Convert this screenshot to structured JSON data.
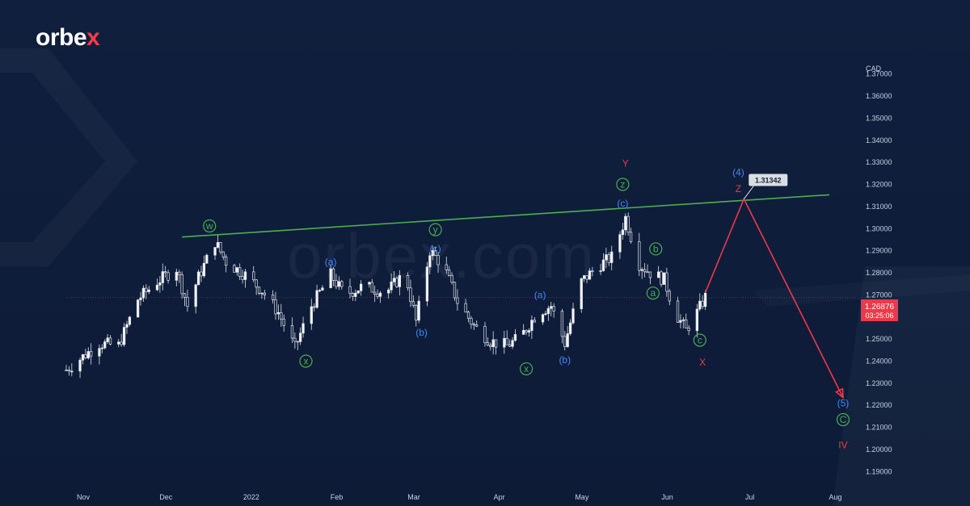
{
  "brand": {
    "logo_text": "orbe",
    "logo_accent": "x",
    "watermark": "orbex.com"
  },
  "colors": {
    "background": "#0f1e3c",
    "bull": "#e6e9ef",
    "bear": "#e6e9ef",
    "trendline": "#4caf50",
    "projection": "#f0384a",
    "wave_green": "#4caf50",
    "wave_blue": "#3d8bff",
    "wave_red": "#f0384a",
    "price_badge": "#f0384a",
    "target_badge": "#d9dde4"
  },
  "chart_data": {
    "type": "candlestick",
    "symbol_unit": "CAD",
    "x_labels": [
      "Nov",
      "Dec",
      "2022",
      "Feb",
      "Mar",
      "Apr",
      "May",
      "Jun",
      "Jul",
      "Aug"
    ],
    "y_ticks": [
      1.19,
      1.2,
      1.21,
      1.22,
      1.23,
      1.24,
      1.25,
      1.26,
      1.27,
      1.28,
      1.29,
      1.3,
      1.31,
      1.32,
      1.33,
      1.34,
      1.35,
      1.36,
      1.37
    ],
    "ylim": [
      1.185,
      1.375
    ],
    "xlim": [
      "2021-10-27",
      "2022-08-10"
    ],
    "grid": false,
    "current_price": {
      "value": 1.26876,
      "label": "1.26876",
      "countdown": "03:25:06"
    },
    "price_path": [
      [
        "2021-10-27",
        1.236
      ],
      [
        "2021-11-02",
        1.242
      ],
      [
        "2021-11-08",
        1.248
      ],
      [
        "2021-11-15",
        1.247
      ],
      [
        "2021-11-22",
        1.268
      ],
      [
        "2021-11-29",
        1.276
      ],
      [
        "2021-12-06",
        1.282
      ],
      [
        "2021-12-10",
        1.265
      ],
      [
        "2021-12-14",
        1.278
      ],
      [
        "2021-12-20",
        1.294
      ],
      [
        "2021-12-24",
        1.285
      ],
      [
        "2021-12-31",
        1.279
      ],
      [
        "2022-01-06",
        1.272
      ],
      [
        "2022-01-12",
        1.262
      ],
      [
        "2022-01-18",
        1.246
      ],
      [
        "2022-01-24",
        1.265
      ],
      [
        "2022-01-31",
        1.279
      ],
      [
        "2022-02-05",
        1.27
      ],
      [
        "2022-02-12",
        1.274
      ],
      [
        "2022-02-20",
        1.271
      ],
      [
        "2022-02-27",
        1.28
      ],
      [
        "2022-03-03",
        1.258
      ],
      [
        "2022-03-08",
        1.29
      ],
      [
        "2022-03-13",
        1.283
      ],
      [
        "2022-03-18",
        1.267
      ],
      [
        "2022-03-24",
        1.256
      ],
      [
        "2022-03-30",
        1.249
      ],
      [
        "2022-04-05",
        1.247
      ],
      [
        "2022-04-10",
        1.251
      ],
      [
        "2022-04-16",
        1.262
      ],
      [
        "2022-04-21",
        1.265
      ],
      [
        "2022-04-26",
        1.248
      ],
      [
        "2022-05-02",
        1.276
      ],
      [
        "2022-05-08",
        1.283
      ],
      [
        "2022-05-13",
        1.287
      ],
      [
        "2022-05-18",
        1.305
      ],
      [
        "2022-05-23",
        1.284
      ],
      [
        "2022-05-27",
        1.28
      ],
      [
        "2022-06-01",
        1.277
      ],
      [
        "2022-06-05",
        1.262
      ],
      [
        "2022-06-09",
        1.254
      ],
      [
        "2022-06-13",
        1.262
      ],
      [
        "2022-06-16",
        1.269
      ]
    ],
    "trendline": {
      "from": [
        "2021-12-08",
        1.2962
      ],
      "to": [
        "2022-07-31",
        1.3153
      ]
    },
    "projection": [
      [
        "2022-06-16",
        1.271
      ],
      [
        "2022-06-30",
        1.31342
      ],
      [
        "2022-08-05",
        1.2235
      ]
    ],
    "target": {
      "value": 1.31342,
      "label": "1.31342",
      "date": "2022-06-30"
    },
    "wave_labels": [
      {
        "text": "w",
        "date": "2021-12-18",
        "price": 1.3012,
        "color": "green",
        "circled": true
      },
      {
        "text": "x",
        "date": "2022-01-22",
        "price": 1.24,
        "color": "green",
        "circled": true
      },
      {
        "text": "y",
        "date": "2022-03-10",
        "price": 1.2995,
        "color": "green",
        "circled": true
      },
      {
        "text": "x",
        "date": "2022-04-12",
        "price": 1.2365,
        "color": "green",
        "circled": true
      },
      {
        "text": "z",
        "date": "2022-05-17",
        "price": 1.32,
        "color": "green",
        "circled": true
      },
      {
        "text": "b",
        "date": "2022-05-29",
        "price": 1.2908,
        "color": "green",
        "circled": true
      },
      {
        "text": "a",
        "date": "2022-05-28",
        "price": 1.2708,
        "color": "green",
        "circled": true
      },
      {
        "text": "c",
        "date": "2022-06-14",
        "price": 1.2495,
        "color": "green",
        "circled": true
      },
      {
        "text": "C",
        "date": "2022-08-05",
        "price": 1.2135,
        "color": "green",
        "circled": true
      },
      {
        "text": "(a)",
        "date": "2022-01-31",
        "price": 1.285,
        "color": "blue",
        "circled": false
      },
      {
        "text": "(c)",
        "date": "2022-03-10",
        "price": 1.291,
        "color": "blue",
        "circled": false
      },
      {
        "text": "(b)",
        "date": "2022-03-05",
        "price": 1.253,
        "color": "blue",
        "circled": false
      },
      {
        "text": "(a)",
        "date": "2022-04-17",
        "price": 1.27,
        "color": "blue",
        "circled": false
      },
      {
        "text": "(b)",
        "date": "2022-04-26",
        "price": 1.2405,
        "color": "blue",
        "circled": false
      },
      {
        "text": "(c)",
        "date": "2022-05-17",
        "price": 1.3115,
        "color": "blue",
        "circled": false
      },
      {
        "text": "(4)",
        "date": "2022-06-28",
        "price": 1.3255,
        "color": "blue",
        "circled": false
      },
      {
        "text": "(5)",
        "date": "2022-08-05",
        "price": 1.221,
        "color": "blue",
        "circled": false
      },
      {
        "text": "Y",
        "date": "2022-05-18",
        "price": 1.3295,
        "color": "red",
        "circled": false
      },
      {
        "text": "Z",
        "date": "2022-06-28",
        "price": 1.318,
        "color": "red",
        "circled": false
      },
      {
        "text": "X",
        "date": "2022-06-15",
        "price": 1.2395,
        "color": "red",
        "circled": false
      },
      {
        "text": "IV",
        "date": "2022-08-05",
        "price": 1.202,
        "color": "red",
        "circled": false
      }
    ]
  }
}
